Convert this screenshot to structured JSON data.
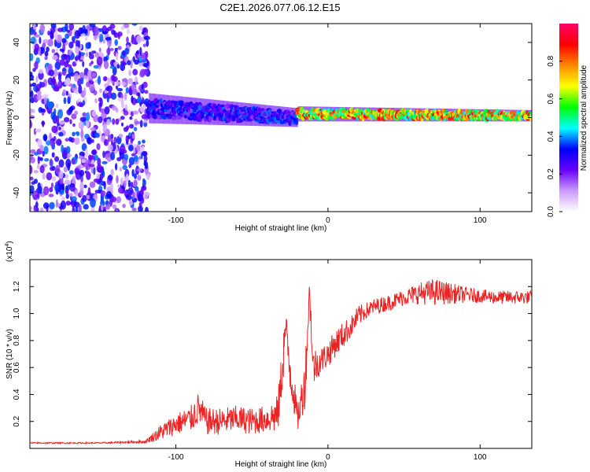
{
  "figure": {
    "title": "C2E1.2026.077.06.12.E15"
  },
  "chart_data": [
    {
      "type": "heatmap",
      "title": "C2E1.2026.077.06.12.E15",
      "xlabel": "Height of straight line (km)",
      "ylabel": "Frequency (Hz)",
      "xlim": [
        -196,
        134
      ],
      "ylim": [
        -50,
        50
      ],
      "x_ticks": [
        -100,
        0,
        100
      ],
      "y_ticks": [
        -40,
        -20,
        0,
        20,
        40
      ],
      "x_tick_labels": [
        "-100",
        "0",
        "100"
      ],
      "y_tick_labels": [
        "-40",
        "-20",
        "0",
        "20",
        "40"
      ],
      "colorbar": {
        "label": "Normalized spectral amplitude",
        "range": [
          0,
          1
        ],
        "ticks": [
          0.0,
          0.2,
          0.4,
          0.6,
          0.8
        ],
        "tick_labels": [
          "0.0",
          "0.2",
          "0.4",
          "0.6",
          "0.8"
        ],
        "colors": [
          "#ffffff",
          "#cc99ff",
          "#6600ff",
          "#0000ff",
          "#00ffff",
          "#00ff00",
          "#ffff00",
          "#ff8800",
          "#ff0000",
          "#ff0066"
        ]
      },
      "regions": [
        {
          "x_range": [
            -196,
            -118
          ],
          "y_range": [
            -50,
            50
          ],
          "description": "scattered noise speckles",
          "typical_value": 0.15
        },
        {
          "x_range": [
            -118,
            -20
          ],
          "center_freq": [
            5,
            0
          ],
          "half_width": [
            8,
            5
          ],
          "typical_value": 0.3
        },
        {
          "x_range": [
            -20,
            134
          ],
          "center_freq": [
            2,
            1
          ],
          "half_width": [
            4,
            3
          ],
          "typical_value": 0.7
        }
      ]
    },
    {
      "type": "line",
      "xlabel": "Height of straight line (km)",
      "ylabel": "SNR (10 * v/v)",
      "y_multiplier": "(x10⁴)",
      "y_multiplier_base": "(x10",
      "y_multiplier_exp": "4",
      "y_multiplier_close": ")",
      "xlim": [
        -196,
        134
      ],
      "ylim": [
        0,
        1.4
      ],
      "x_ticks": [
        -100,
        0,
        100
      ],
      "y_ticks": [
        0.2,
        0.4,
        0.6,
        0.8,
        1.0,
        1.2
      ],
      "x_tick_labels": [
        "-100",
        "0",
        "100"
      ],
      "y_tick_labels": [
        "0.2",
        "0.4",
        "0.6",
        "0.8",
        "1.0",
        "1.2"
      ],
      "color": "#ee2222",
      "series": [
        {
          "name": "SNR",
          "x": [
            -196,
            -150,
            -120,
            -110,
            -100,
            -90,
            -85,
            -80,
            -70,
            -60,
            -50,
            -40,
            -33,
            -30,
            -28,
            -25,
            -20,
            -15,
            -12,
            -10,
            -5,
            0,
            5,
            10,
            15,
            20,
            25,
            30,
            40,
            50,
            60,
            70,
            80,
            90,
            100,
            110,
            120,
            134
          ],
          "y": [
            0.04,
            0.04,
            0.05,
            0.12,
            0.18,
            0.22,
            0.3,
            0.2,
            0.2,
            0.22,
            0.2,
            0.22,
            0.25,
            0.6,
            0.9,
            0.6,
            0.22,
            0.5,
            1.2,
            0.6,
            0.65,
            0.7,
            0.78,
            0.84,
            0.9,
            0.98,
            1.02,
            1.05,
            1.08,
            1.12,
            1.15,
            1.16,
            1.15,
            1.14,
            1.13,
            1.12,
            1.12,
            1.12
          ],
          "amplitude": [
            0.005,
            0.005,
            0.01,
            0.06,
            0.08,
            0.1,
            0.12,
            0.1,
            0.1,
            0.1,
            0.1,
            0.1,
            0.15,
            0.2,
            0.15,
            0.2,
            0.1,
            0.2,
            0.1,
            0.15,
            0.1,
            0.1,
            0.1,
            0.1,
            0.08,
            0.08,
            0.06,
            0.06,
            0.06,
            0.06,
            0.08,
            0.1,
            0.08,
            0.06,
            0.05,
            0.05,
            0.05,
            0.05
          ]
        }
      ]
    }
  ]
}
